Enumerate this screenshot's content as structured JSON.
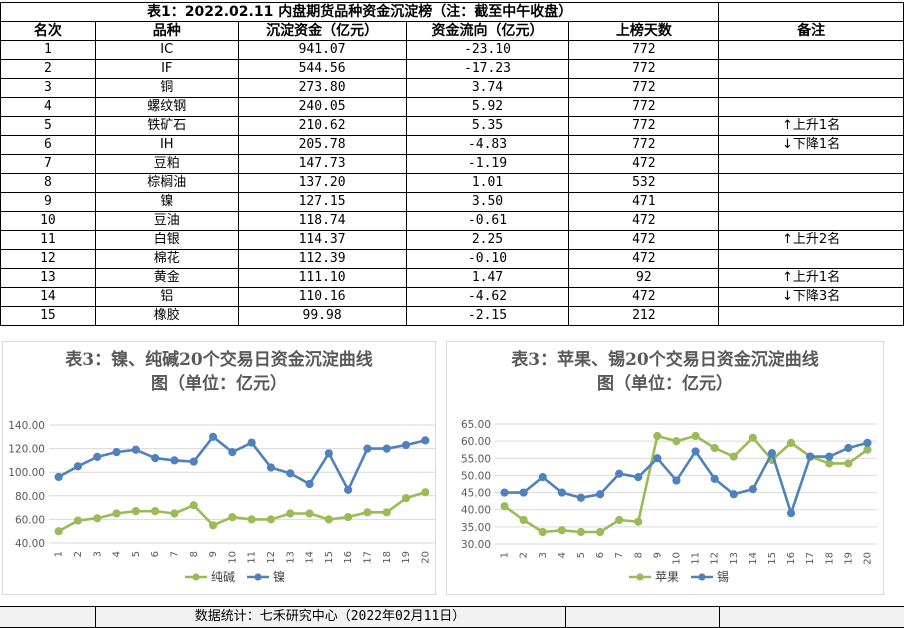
{
  "table": {
    "title": "表1：2022.02.11 内盘期货品种资金沉淀榜（注：截至中午收盘）",
    "headers": [
      "名次",
      "品种",
      "沉淀资金（亿元）",
      "资金流向（亿元）",
      "上榜天数",
      "备注"
    ],
    "rows": [
      [
        "1",
        "IC",
        "941.07",
        "-23.10",
        "772",
        ""
      ],
      [
        "2",
        "IF",
        "544.56",
        "-17.23",
        "772",
        ""
      ],
      [
        "3",
        "铜",
        "273.80",
        "3.74",
        "772",
        ""
      ],
      [
        "4",
        "螺纹钢",
        "240.05",
        "5.92",
        "772",
        ""
      ],
      [
        "5",
        "铁矿石",
        "210.62",
        "5.35",
        "772",
        "↑上升1名"
      ],
      [
        "6",
        "IH",
        "205.78",
        "-4.83",
        "772",
        "↓下降1名"
      ],
      [
        "7",
        "豆粕",
        "147.73",
        "-1.19",
        "472",
        ""
      ],
      [
        "8",
        "棕榈油",
        "137.20",
        "1.01",
        "532",
        ""
      ],
      [
        "9",
        "镍",
        "127.15",
        "3.50",
        "471",
        ""
      ],
      [
        "10",
        "豆油",
        "118.74",
        "-0.61",
        "472",
        ""
      ],
      [
        "11",
        "白银",
        "114.37",
        "2.25",
        "472",
        "↑上升2名"
      ],
      [
        "12",
        "棉花",
        "112.39",
        "-0.10",
        "472",
        ""
      ],
      [
        "13",
        "黄金",
        "111.10",
        "1.47",
        "92",
        "↑上升1名"
      ],
      [
        "14",
        "铝",
        "110.16",
        "-4.62",
        "472",
        "↓下降3名"
      ],
      [
        "15",
        "橡胶",
        "99.98",
        "-2.15",
        "212",
        ""
      ]
    ]
  },
  "chart_data": [
    {
      "type": "line",
      "title_line1": "表3：镍、纯碱20个交易日资金沉淀曲线",
      "title_line2": "图（单位：亿元）",
      "x": [
        1,
        2,
        3,
        4,
        5,
        6,
        7,
        8,
        9,
        10,
        11,
        12,
        13,
        14,
        15,
        16,
        17,
        18,
        19,
        20
      ],
      "ylim": [
        40,
        140
      ],
      "yticks": [
        "40.00",
        "60.00",
        "80.00",
        "100.00",
        "120.00",
        "140.00"
      ],
      "grid": true,
      "legend": "bottom",
      "series": [
        {
          "name": "纯碱",
          "color": "#9bbb59",
          "values": [
            50,
            59,
            61,
            65,
            67,
            67,
            65,
            72,
            55,
            62,
            60,
            60,
            65,
            65,
            60,
            62,
            66,
            66,
            78,
            83
          ]
        },
        {
          "name": "镍",
          "color": "#4f81bd",
          "values": [
            96,
            105,
            113,
            117,
            119,
            112,
            110,
            109,
            130,
            117,
            125,
            104,
            99,
            90,
            116,
            85,
            120,
            120,
            123,
            127
          ]
        }
      ]
    },
    {
      "type": "line",
      "title_line1": "表3：苹果、锡20个交易日资金沉淀曲线",
      "title_line2": "图（单位：亿元）",
      "x": [
        1,
        2,
        3,
        4,
        5,
        6,
        7,
        8,
        9,
        10,
        11,
        12,
        13,
        14,
        15,
        16,
        17,
        18,
        19,
        20
      ],
      "ylim": [
        30,
        65
      ],
      "yticks": [
        "30.00",
        "35.00",
        "40.00",
        "45.00",
        "50.00",
        "55.00",
        "60.00",
        "65.00"
      ],
      "grid": true,
      "legend": "bottom",
      "series": [
        {
          "name": "苹果",
          "color": "#9bbb59",
          "values": [
            41,
            37,
            33.5,
            34,
            33.5,
            33.5,
            37,
            36.5,
            61.5,
            60,
            61.5,
            58,
            55.5,
            61,
            54.5,
            59.5,
            55.5,
            53.5,
            53.5,
            57.5
          ]
        },
        {
          "name": "锡",
          "color": "#4f81bd",
          "values": [
            45,
            45,
            49.5,
            45,
            43.5,
            44.5,
            50.5,
            49.5,
            55,
            48.5,
            57,
            49,
            44.5,
            46,
            56.5,
            39,
            55.5,
            55.5,
            58,
            59.5
          ]
        }
      ]
    }
  ],
  "footer": "数据统计：七禾研究中心（2022年02月11日）"
}
